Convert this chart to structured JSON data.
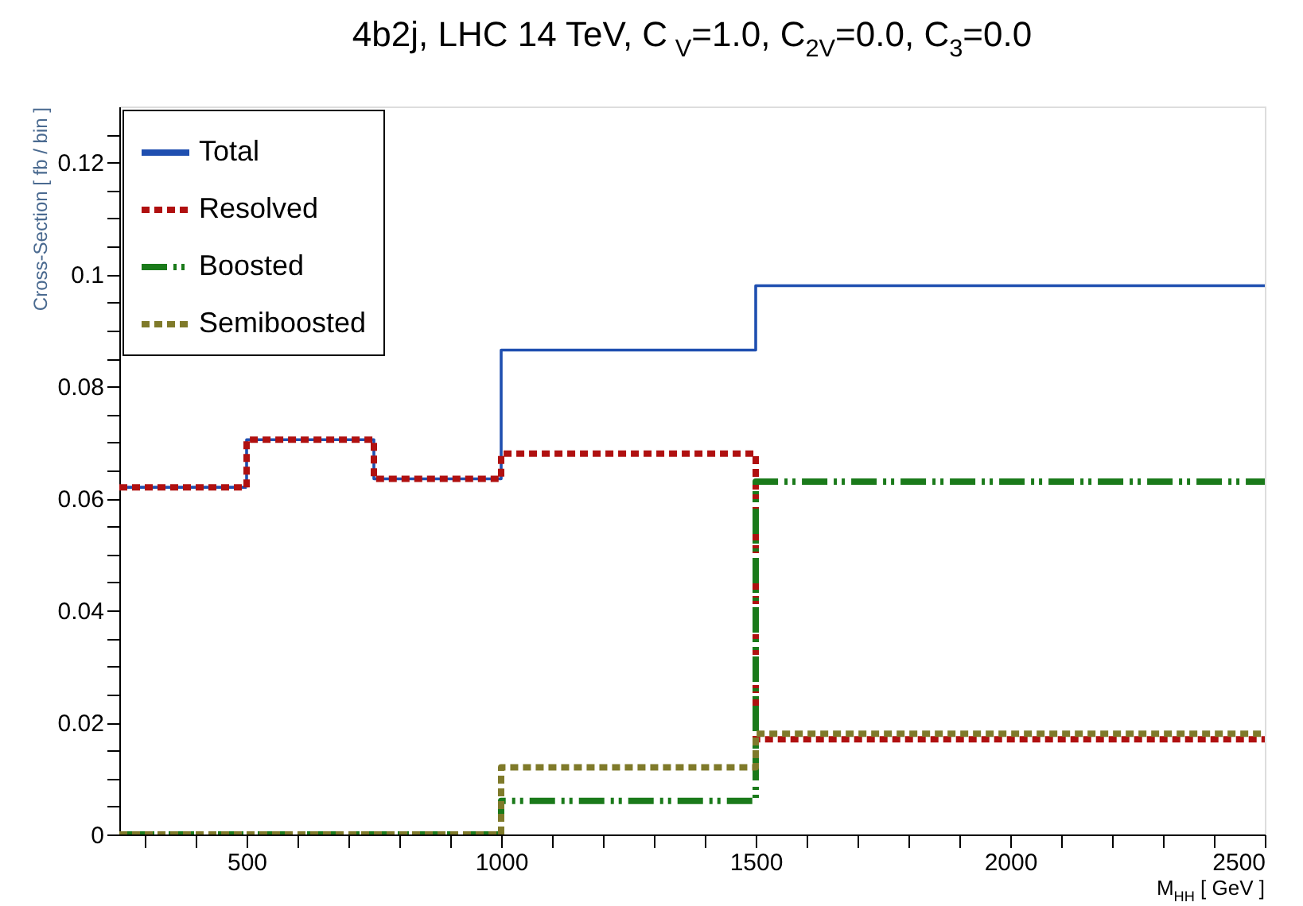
{
  "chart_data": {
    "type": "histogram",
    "title": "4b2j, LHC 14 TeV, C$_{V}$=1.0, C$_{2V}$=0.0, C$_{3}$=0.0",
    "xlabel": "M$_{HH}$ [ GeV ]",
    "ylabel": "Cross-Section [ fb / bin ]",
    "bins": [
      250,
      500,
      750,
      1000,
      1500,
      2500
    ],
    "series": [
      {
        "name": "Total",
        "color": "#1f4fb0",
        "line_style": "solid",
        "values": [
          0.062,
          0.0705,
          0.0635,
          0.0865,
          0.098
        ]
      },
      {
        "name": "Resolved",
        "color": "#b01010",
        "line_style": "dotted",
        "values": [
          0.062,
          0.0705,
          0.0635,
          0.068,
          0.017
        ]
      },
      {
        "name": "Boosted",
        "color": "#1a7a1a",
        "line_style": "dashed",
        "values": [
          0,
          0,
          0,
          0.006,
          0.063
        ]
      },
      {
        "name": "Semiboosted",
        "color": "#7f7a2a",
        "line_style": "dotted",
        "values": [
          0,
          0,
          0,
          0.012,
          0.018
        ]
      }
    ],
    "xlim": [
      250,
      2500
    ],
    "ylim": [
      0,
      0.13
    ],
    "xticks": [
      {
        "value": 300,
        "label": null
      },
      {
        "value": 400,
        "label": null
      },
      500,
      {
        "value": 600,
        "label": null
      },
      {
        "value": 700,
        "label": null
      },
      {
        "value": 800,
        "label": null
      },
      {
        "value": 900,
        "label": null
      },
      1000,
      {
        "value": 1100,
        "label": null
      },
      {
        "value": 1200,
        "label": null
      },
      {
        "value": 1300,
        "label": null
      },
      {
        "value": 1400,
        "label": null
      },
      1500,
      {
        "value": 1600,
        "label": null
      },
      {
        "value": 1700,
        "label": null
      },
      {
        "value": 1800,
        "label": null
      },
      {
        "value": 1900,
        "label": null
      },
      2000,
      {
        "value": 2100,
        "label": null
      },
      {
        "value": 2200,
        "label": null
      },
      {
        "value": 2300,
        "label": null
      },
      {
        "value": 2400,
        "label": null
      },
      2500
    ],
    "yticks": [
      0,
      {
        "value": 0.005,
        "label": null
      },
      {
        "value": 0.01,
        "label": null
      },
      {
        "value": 0.015,
        "label": null
      },
      0.02,
      {
        "value": 0.025,
        "label": null
      },
      {
        "value": 0.03,
        "label": null
      },
      {
        "value": 0.035,
        "label": null
      },
      0.04,
      {
        "value": 0.045,
        "label": null
      },
      {
        "value": 0.05,
        "label": null
      },
      {
        "value": 0.055,
        "label": null
      },
      0.06,
      {
        "value": 0.065,
        "label": null
      },
      {
        "value": 0.07,
        "label": null
      },
      {
        "value": 0.075,
        "label": null
      },
      0.08,
      {
        "value": 0.085,
        "label": null
      },
      {
        "value": 0.09,
        "label": null
      },
      {
        "value": 0.095,
        "label": null
      },
      0.1,
      {
        "value": 0.105,
        "label": null
      },
      {
        "value": 0.11,
        "label": null
      },
      {
        "value": 0.115,
        "label": null
      },
      0.12,
      {
        "value": 0.125,
        "label": null
      }
    ],
    "grid": false,
    "legend": "top left"
  }
}
